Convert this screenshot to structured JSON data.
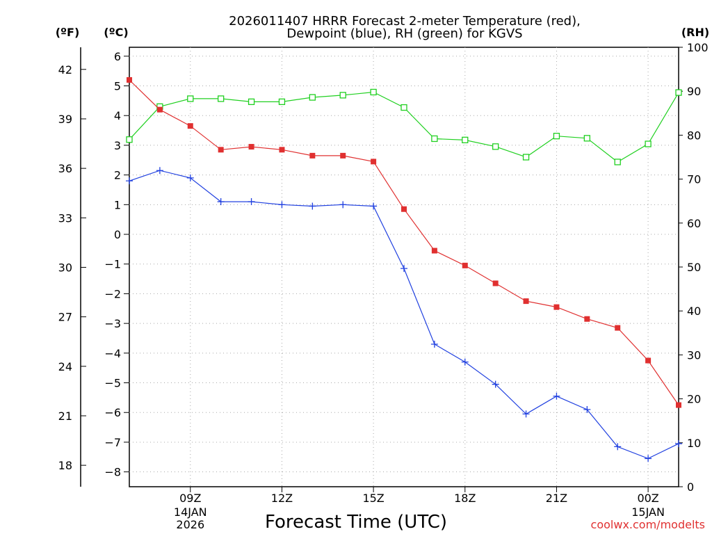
{
  "chart_data": {
    "type": "line",
    "title_line1": "2026011407 HRRR Forecast 2-meter Temperature (red),",
    "title_line2": "Dewpoint (blue), RH (green) for KGVS",
    "xlabel": "Forecast Time (UTC)",
    "credit": "coolwx.com/modelts",
    "unit_f": "(ºF)",
    "unit_c": "(ºC)",
    "unit_rh": "(RH)",
    "x_hours": [
      7,
      8,
      9,
      10,
      11,
      12,
      13,
      14,
      15,
      16,
      17,
      18,
      19,
      20,
      21,
      22,
      23,
      24,
      25
    ],
    "xlim": [
      7,
      25
    ],
    "x_ticks": [
      {
        "hour": 9,
        "label": "09Z",
        "sub1": "14JAN",
        "sub2": "2026"
      },
      {
        "hour": 12,
        "label": "12Z",
        "sub1": "",
        "sub2": ""
      },
      {
        "hour": 15,
        "label": "15Z",
        "sub1": "",
        "sub2": ""
      },
      {
        "hour": 18,
        "label": "18Z",
        "sub1": "",
        "sub2": ""
      },
      {
        "hour": 21,
        "label": "21Z",
        "sub1": "",
        "sub2": ""
      },
      {
        "hour": 24,
        "label": "00Z",
        "sub1": "15JAN",
        "sub2": ""
      }
    ],
    "celsius_axis": {
      "ylim": [
        -8.5,
        6.3
      ],
      "ticks": [
        6,
        5,
        4,
        3,
        2,
        1,
        0,
        -1,
        -2,
        -3,
        -4,
        -5,
        -6,
        -7,
        -8
      ],
      "tick_labels": [
        "6",
        "5",
        "4",
        "3",
        "2",
        "1",
        "0",
        "−1",
        "−2",
        "−3",
        "−4",
        "−5",
        "−6",
        "−7",
        "−8"
      ]
    },
    "fahrenheit_axis": {
      "ticks": [
        42,
        39,
        36,
        33,
        30,
        27,
        24,
        21,
        18
      ]
    },
    "rh_axis": {
      "ylim": [
        0,
        100
      ],
      "ticks": [
        100,
        90,
        80,
        70,
        60,
        50,
        40,
        30,
        20,
        10,
        0
      ]
    },
    "series": [
      {
        "name": "Temperature",
        "unit": "C",
        "color": "#e03030",
        "marker": "filled-square",
        "values": [
          5.2,
          4.2,
          3.65,
          2.85,
          2.95,
          2.85,
          2.65,
          2.65,
          2.45,
          0.85,
          -0.55,
          -1.05,
          -1.65,
          -2.25,
          -2.45,
          -2.85,
          -3.15,
          -4.25,
          -5.75
        ]
      },
      {
        "name": "Dewpoint",
        "unit": "C",
        "color": "#2040e0",
        "marker": "plus",
        "values": [
          1.8,
          2.15,
          1.9,
          1.1,
          1.1,
          1.0,
          0.95,
          1.0,
          0.95,
          -1.15,
          -3.7,
          -4.3,
          -5.05,
          -6.05,
          -5.45,
          -5.9,
          -7.15,
          -7.55,
          -7.05
        ]
      },
      {
        "name": "RH",
        "unit": "%",
        "color": "#20d020",
        "marker": "open-square",
        "values": [
          79,
          86.5,
          88.3,
          88.3,
          87.6,
          87.6,
          88.6,
          89.1,
          89.8,
          86.3,
          79.2,
          78.9,
          77.4,
          75,
          79.8,
          79.3,
          73.9,
          78,
          89.7
        ]
      }
    ]
  }
}
